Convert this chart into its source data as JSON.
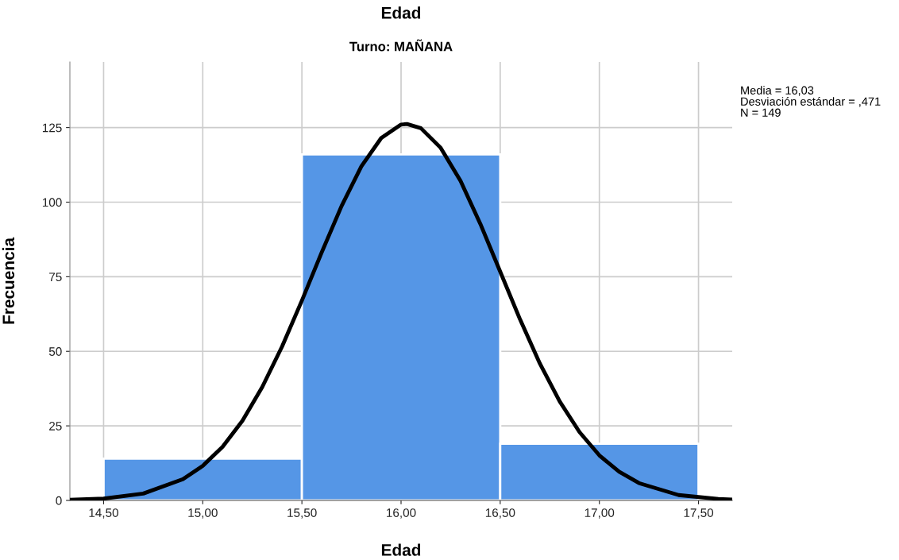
{
  "chart_data": {
    "type": "histogram",
    "title": "Edad",
    "subtitle": "Turno: MAÑANA",
    "xlabel": "Edad",
    "ylabel": "Frecuencia",
    "bins": [
      14.5,
      15.5,
      16.5,
      17.5
    ],
    "values": [
      14,
      116,
      19
    ],
    "color": "#5596e6",
    "series": [
      {
        "type": "line",
        "color": "#000000",
        "x": [
          14.33,
          14.5,
          14.7,
          14.9,
          15.0,
          15.1,
          15.2,
          15.3,
          15.4,
          15.5,
          15.6,
          15.7,
          15.8,
          15.9,
          16.0,
          16.03,
          16.1,
          16.2,
          16.3,
          16.4,
          16.5,
          16.6,
          16.7,
          16.8,
          16.9,
          17.0,
          17.1,
          17.2,
          17.4,
          17.6,
          17.67
        ],
        "values": [
          0.2,
          0.6,
          2.3,
          7.1,
          11.6,
          18.0,
          26.7,
          38.0,
          51.6,
          67.0,
          83.2,
          98.7,
          112.0,
          121.5,
          126.0,
          126.2,
          124.8,
          118.2,
          107.1,
          92.7,
          76.7,
          60.7,
          45.9,
          33.2,
          22.9,
          15.1,
          9.6,
          5.8,
          1.8,
          0.5,
          0.3
        ]
      }
    ],
    "annotations": [
      "Media = 16,03",
      "Desviación estándar = ,471",
      "N = 149"
    ],
    "xlim": [
      14.33,
      17.67
    ],
    "ylim": [
      0,
      147
    ],
    "xticks": [
      {
        "value": 14.5,
        "label": "14,50"
      },
      {
        "value": 15.0,
        "label": "15,00"
      },
      {
        "value": 15.5,
        "label": "15,50"
      },
      {
        "value": 16.0,
        "label": "16,00"
      },
      {
        "value": 16.5,
        "label": "16,50"
      },
      {
        "value": 17.0,
        "label": "17,00"
      },
      {
        "value": 17.5,
        "label": "17,50"
      }
    ],
    "yticks": [
      0,
      25,
      50,
      75,
      100,
      125
    ],
    "grid": true,
    "legend": false
  }
}
